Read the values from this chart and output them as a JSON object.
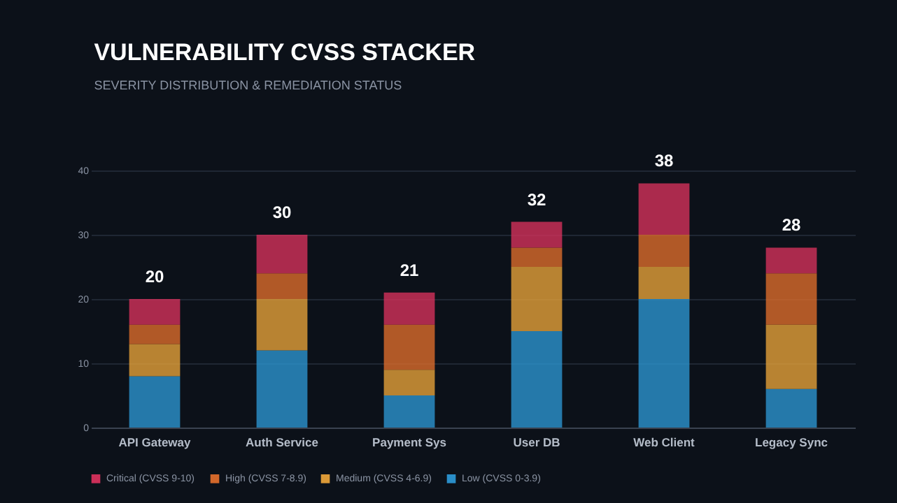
{
  "chart_data": {
    "type": "bar",
    "title": "VULNERABILITY CVSS STACKER",
    "subtitle": "SEVERITY DISTRIBUTION & REMEDIATION STATUS",
    "categories": [
      "API Gateway",
      "Auth Service",
      "Payment Sys",
      "User DB",
      "Web Client",
      "Legacy Sync"
    ],
    "stacked": true,
    "series": [
      {
        "name": "Low (CVSS 0-3.9)",
        "color": "#2d9cdb",
        "values": [
          8,
          12,
          5,
          15,
          20,
          6
        ]
      },
      {
        "name": "Medium (CVSS 4-6.9)",
        "color": "#f2a93b",
        "values": [
          5,
          8,
          4,
          10,
          5,
          10
        ]
      },
      {
        "name": "High (CVSS 7-8.9)",
        "color": "#e8712c",
        "values": [
          3,
          4,
          7,
          3,
          5,
          8
        ]
      },
      {
        "name": "Critical (CVSS 9-10)",
        "color": "#e0335f",
        "values": [
          4,
          6,
          5,
          4,
          8,
          4
        ]
      }
    ],
    "totals": [
      "20",
      "30",
      "21",
      "32",
      "38",
      "28"
    ],
    "ylim": [
      0,
      40
    ],
    "yticks": [
      0,
      10,
      20,
      30,
      40
    ],
    "grid": "y",
    "legend": "bottom left"
  }
}
